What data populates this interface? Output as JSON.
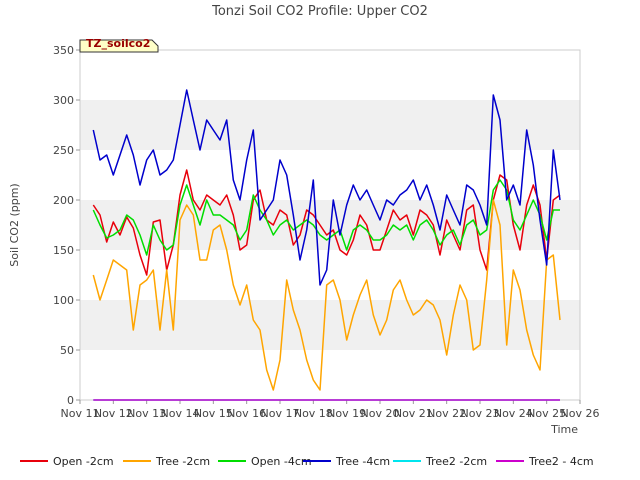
{
  "chart_data": {
    "type": "line",
    "title": "Tonzi Soil CO2 Profile: Upper CO2",
    "xlabel": "Time",
    "ylabel": "Soil CO2 (ppm)",
    "tag": "TZ_soilco2",
    "xlim": [
      11,
      26
    ],
    "ylim": [
      0,
      350
    ],
    "x_ticks": [
      11,
      12,
      13,
      14,
      15,
      16,
      17,
      18,
      19,
      20,
      21,
      22,
      23,
      24,
      25,
      26
    ],
    "x_tick_labels": [
      "Nov 11",
      "Nov 12",
      "Nov 13",
      "Nov 14",
      "Nov 15",
      "Nov 16",
      "Nov 17",
      "Nov 18",
      "Nov 19",
      "Nov 20",
      "Nov 21",
      "Nov 22",
      "Nov 23",
      "Nov 24",
      "Nov 25",
      "Nov 26"
    ],
    "y_ticks": [
      0,
      50,
      100,
      150,
      200,
      250,
      300,
      350
    ],
    "y_tick_labels": [
      "0",
      "50",
      "100",
      "150",
      "200",
      "250",
      "300",
      "350"
    ],
    "grid": "horizontal bands",
    "legend_position": "bottom",
    "x": [
      11.4,
      11.6,
      11.8,
      12.0,
      12.2,
      12.4,
      12.6,
      12.8,
      13.0,
      13.2,
      13.4,
      13.6,
      13.8,
      14.0,
      14.2,
      14.4,
      14.6,
      14.8,
      15.0,
      15.2,
      15.4,
      15.6,
      15.8,
      16.0,
      16.2,
      16.4,
      16.6,
      16.8,
      17.0,
      17.2,
      17.4,
      17.6,
      17.8,
      18.0,
      18.2,
      18.4,
      18.6,
      18.8,
      19.0,
      19.2,
      19.4,
      19.6,
      19.8,
      20.0,
      20.2,
      20.4,
      20.6,
      20.8,
      21.0,
      21.2,
      21.4,
      21.6,
      21.8,
      22.0,
      22.2,
      22.4,
      22.6,
      22.8,
      23.0,
      23.2,
      23.4,
      23.6,
      23.8,
      24.0,
      24.2,
      24.4,
      24.6,
      24.8,
      25.0,
      25.2,
      25.4
    ],
    "series": [
      {
        "name": "Open -2cm",
        "color": "#e8000b",
        "values": [
          195,
          185,
          158,
          178,
          165,
          183,
          172,
          145,
          125,
          178,
          180,
          130,
          155,
          205,
          230,
          200,
          190,
          205,
          200,
          195,
          205,
          185,
          150,
          155,
          200,
          210,
          180,
          175,
          190,
          185,
          155,
          165,
          190,
          185,
          175,
          165,
          170,
          150,
          145,
          160,
          185,
          175,
          150,
          150,
          170,
          190,
          180,
          185,
          165,
          190,
          185,
          175,
          145,
          180,
          165,
          150,
          190,
          195,
          150,
          130,
          200,
          225,
          220,
          175,
          150,
          195,
          215,
          195,
          140,
          200,
          205
        ]
      },
      {
        "name": "Tree -2cm",
        "color": "#ffa500",
        "values": [
          125,
          100,
          120,
          140,
          135,
          130,
          70,
          115,
          120,
          130,
          70,
          130,
          70,
          180,
          195,
          185,
          140,
          140,
          170,
          175,
          150,
          115,
          95,
          115,
          80,
          70,
          30,
          10,
          40,
          120,
          90,
          70,
          40,
          20,
          10,
          115,
          120,
          100,
          60,
          85,
          105,
          120,
          85,
          65,
          80,
          110,
          120,
          100,
          85,
          90,
          100,
          95,
          80,
          45,
          85,
          115,
          100,
          50,
          55,
          120,
          200,
          175,
          55,
          130,
          110,
          70,
          45,
          30,
          140,
          145,
          80
        ]
      },
      {
        "name": "Open -4cm",
        "color": "#00dd00",
        "values": [
          190,
          175,
          162,
          165,
          170,
          185,
          180,
          165,
          145,
          175,
          160,
          150,
          155,
          195,
          215,
          195,
          175,
          200,
          185,
          185,
          180,
          175,
          160,
          170,
          205,
          190,
          180,
          165,
          175,
          180,
          170,
          175,
          180,
          175,
          165,
          160,
          165,
          170,
          150,
          170,
          175,
          170,
          160,
          160,
          165,
          175,
          170,
          175,
          160,
          175,
          180,
          170,
          155,
          165,
          170,
          155,
          175,
          180,
          165,
          170,
          210,
          220,
          210,
          180,
          170,
          185,
          200,
          185,
          160,
          190,
          190
        ]
      },
      {
        "name": "Tree -4cm",
        "color": "#0000cc",
        "values": [
          270,
          240,
          245,
          225,
          245,
          265,
          245,
          215,
          240,
          250,
          225,
          230,
          240,
          275,
          310,
          280,
          250,
          280,
          270,
          260,
          280,
          220,
          200,
          240,
          270,
          180,
          190,
          200,
          240,
          225,
          185,
          140,
          170,
          220,
          115,
          130,
          200,
          165,
          195,
          215,
          200,
          210,
          195,
          180,
          200,
          195,
          205,
          210,
          220,
          200,
          215,
          195,
          170,
          205,
          190,
          175,
          215,
          210,
          195,
          175,
          305,
          280,
          200,
          215,
          195,
          270,
          235,
          180,
          135,
          250,
          200
        ]
      },
      {
        "name": "Tree2 -2cm",
        "color": "#00e5ee",
        "values": [
          0,
          0,
          0,
          0,
          0,
          0,
          0,
          0,
          0,
          0,
          0,
          0,
          0,
          0,
          0,
          0,
          0,
          0,
          0,
          0,
          0,
          0,
          0,
          0,
          0,
          0,
          0,
          0,
          0,
          0,
          0,
          0,
          0,
          0,
          0,
          0,
          0,
          0,
          0,
          0,
          0,
          0,
          0,
          0,
          0,
          0,
          0,
          0,
          0,
          0,
          0,
          0,
          0,
          0,
          0,
          0,
          0,
          0,
          0,
          0,
          0,
          0,
          0,
          0,
          0,
          0,
          0,
          0,
          0,
          0,
          0
        ]
      },
      {
        "name": "Tree2 - 4cm",
        "color": "#cc00cc",
        "values": [
          0,
          0,
          0,
          0,
          0,
          0,
          0,
          0,
          0,
          0,
          0,
          0,
          0,
          0,
          0,
          0,
          0,
          0,
          0,
          0,
          0,
          0,
          0,
          0,
          0,
          0,
          0,
          0,
          0,
          0,
          0,
          0,
          0,
          0,
          0,
          0,
          0,
          0,
          0,
          0,
          0,
          0,
          0,
          0,
          0,
          0,
          0,
          0,
          0,
          0,
          0,
          0,
          0,
          0,
          0,
          0,
          0,
          0,
          0,
          0,
          0,
          0,
          0,
          0,
          0,
          0,
          0,
          0,
          0,
          0,
          0
        ]
      }
    ]
  }
}
